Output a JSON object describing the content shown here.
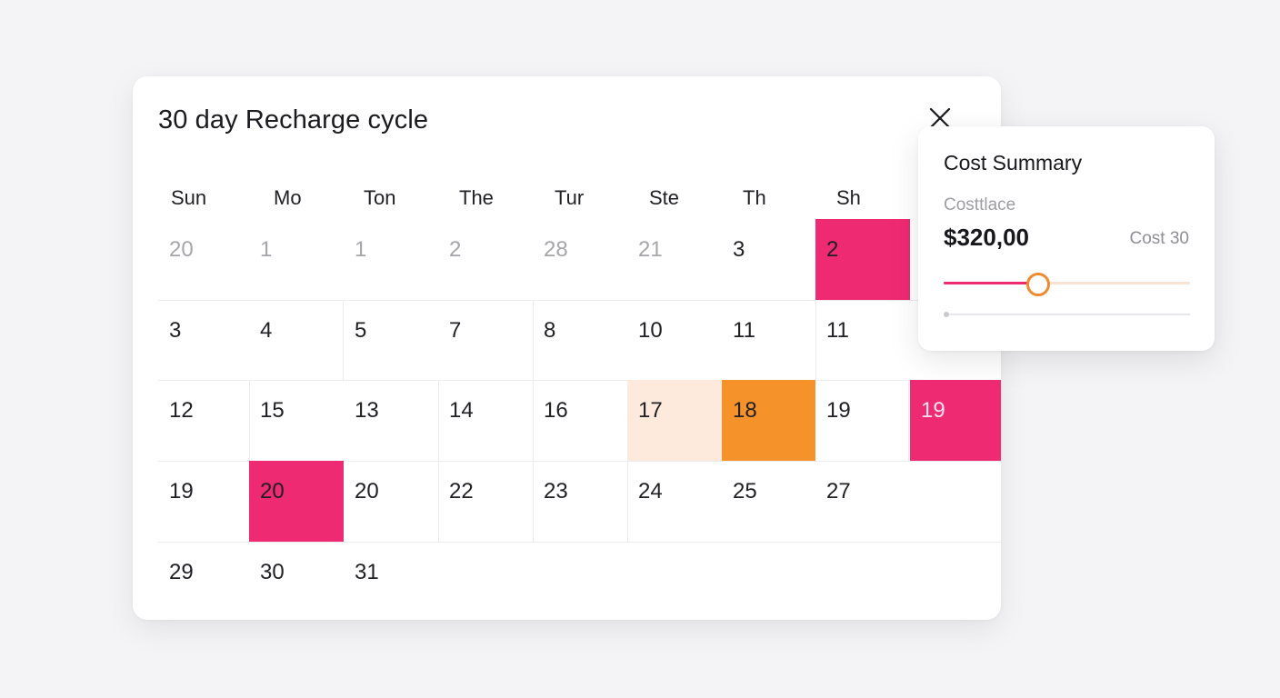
{
  "calendar": {
    "title": "30 day Recharge cycle",
    "close_icon": "close-icon",
    "weekdays": [
      "Sun",
      "Mo",
      "Ton",
      "The",
      "Tur",
      "Ste",
      "Th",
      "Sh"
    ],
    "weeks": [
      [
        {
          "day": "20",
          "state": "muted"
        },
        {
          "day": "1",
          "state": "muted"
        },
        {
          "day": "1",
          "state": "muted"
        },
        {
          "day": "2",
          "state": "muted"
        },
        {
          "day": "28",
          "state": "muted"
        },
        {
          "day": "21",
          "state": "muted"
        },
        {
          "day": "3",
          "state": "normal"
        },
        {
          "day": "2",
          "state": "pink"
        }
      ],
      [
        {
          "day": "3",
          "state": "normal"
        },
        {
          "day": "4",
          "state": "normal"
        },
        {
          "day": "5",
          "state": "normal"
        },
        {
          "day": "7",
          "state": "normal"
        },
        {
          "day": "8",
          "state": "normal"
        },
        {
          "day": "10",
          "state": "normal"
        },
        {
          "day": "11",
          "state": "normal"
        },
        {
          "day": "11",
          "state": "normal"
        }
      ],
      [
        {
          "day": "12",
          "state": "normal"
        },
        {
          "day": "15",
          "state": "normal"
        },
        {
          "day": "13",
          "state": "normal"
        },
        {
          "day": "14",
          "state": "normal"
        },
        {
          "day": "16",
          "state": "normal"
        },
        {
          "day": "17",
          "state": "peach"
        },
        {
          "day": "18",
          "state": "orange"
        },
        {
          "day": "19",
          "state": "normal"
        },
        {
          "day": "19",
          "state": "pink-light"
        }
      ],
      [
        {
          "day": "19",
          "state": "normal"
        },
        {
          "day": "20",
          "state": "pink"
        },
        {
          "day": "20",
          "state": "normal"
        },
        {
          "day": "22",
          "state": "normal"
        },
        {
          "day": "23",
          "state": "normal"
        },
        {
          "day": "24",
          "state": "normal"
        },
        {
          "day": "25",
          "state": "normal"
        },
        {
          "day": "27",
          "state": "normal"
        }
      ],
      [
        {
          "day": "29",
          "state": "normal"
        },
        {
          "day": "30",
          "state": "normal"
        },
        {
          "day": "31",
          "state": "normal"
        }
      ]
    ]
  },
  "summary": {
    "title": "Cost Summary",
    "label": "Costtlace",
    "amount": "$320,00",
    "side_label": "Cost 30",
    "slider_value": 0.38,
    "secondary_slider_value": 0
  },
  "colors": {
    "pink": "#ee2a72",
    "orange": "#f5922a",
    "peach": "#fdeadc",
    "slider_thumb": "#ef8a2e"
  }
}
